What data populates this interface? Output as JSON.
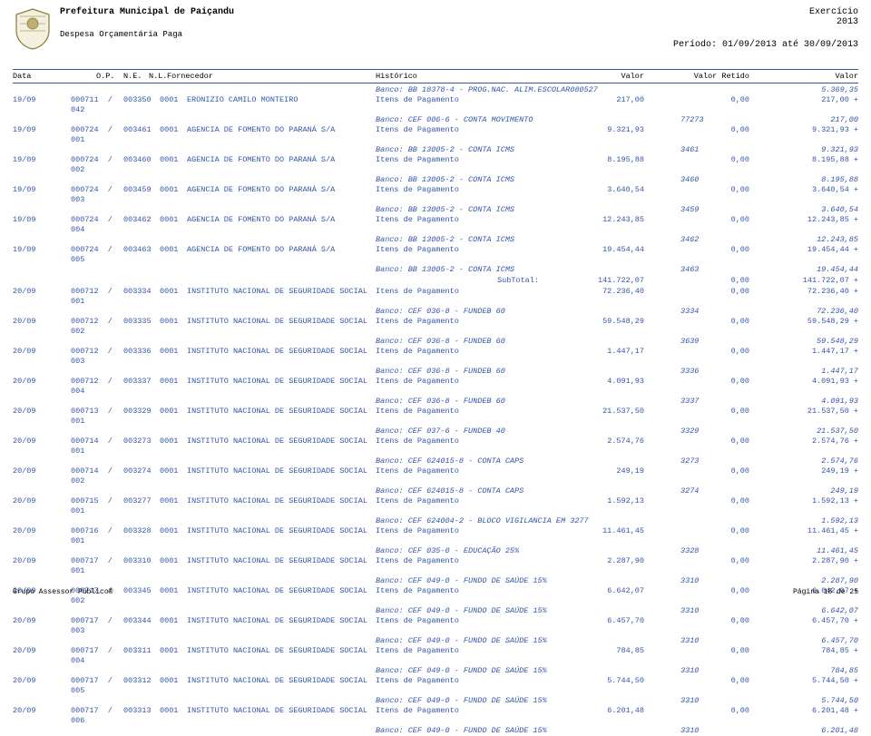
{
  "header": {
    "title": "Prefeitura Municipal de Paiçandu",
    "subtitle": "Despesa Orçamentária Paga",
    "exercicio_label": "Exercício",
    "exercicio_year": "2013",
    "periodo": "Período: 01/09/2013 até 30/09/2013"
  },
  "columns": {
    "data": "Data",
    "op": "O.P.",
    "ne": "N.E.",
    "nl": "N.L.",
    "fornecedor": "Fornecedor",
    "historico": "Histórico",
    "valor": "Valor",
    "valor_retido": "Valor Retido",
    "valor_total": "Valor"
  },
  "top_bank": {
    "text": "Banco: BB 18378-4 - PROG.NAC. ALIM.ESCOLAR080527",
    "v3": "5.369,35"
  },
  "rows": [
    {
      "data": "19/09",
      "op": "000711",
      "seq": "/ 042",
      "ne": "003350",
      "nl": "0001",
      "forn": "ERONIZIO CAMILO MONTEIRO",
      "hist": "Itens de Pagamento",
      "val": "217,00",
      "ret": "0,00",
      "tot": "217,00 +",
      "bank": "Banco: CEF 006-6 - CONTA MOVIMENTO",
      "b2": "77273",
      "b3": "217,00"
    },
    {
      "data": "19/09",
      "op": "000724",
      "seq": "/ 001",
      "ne": "003461",
      "nl": "0001",
      "forn": "AGENCIA DE FOMENTO DO PARANÁ S/A",
      "hist": "Itens de Pagamento",
      "val": "9.321,93",
      "ret": "0,00",
      "tot": "9.321,93 +",
      "bank": "Banco: BB 13005-2 - CONTA ICMS",
      "b2": "3461",
      "b3": "9.321,93"
    },
    {
      "data": "19/09",
      "op": "000724",
      "seq": "/ 002",
      "ne": "003460",
      "nl": "0001",
      "forn": "AGENCIA DE FOMENTO DO PARANÁ S/A",
      "hist": "Itens de Pagamento",
      "val": "8.195,88",
      "ret": "0,00",
      "tot": "8.195,88 +",
      "bank": "Banco: BB 13005-2 - CONTA ICMS",
      "b2": "3460",
      "b3": "8.195,88"
    },
    {
      "data": "19/09",
      "op": "000724",
      "seq": "/ 003",
      "ne": "003459",
      "nl": "0001",
      "forn": "AGENCIA DE FOMENTO DO PARANÁ S/A",
      "hist": "Itens de Pagamento",
      "val": "3.640,54",
      "ret": "0,00",
      "tot": "3.640,54 +",
      "bank": "Banco: BB 13005-2 - CONTA ICMS",
      "b2": "3459",
      "b3": "3.640,54"
    },
    {
      "data": "19/09",
      "op": "000724",
      "seq": "/ 004",
      "ne": "003462",
      "nl": "0001",
      "forn": "AGENCIA DE FOMENTO DO PARANÁ S/A",
      "hist": "Itens de Pagamento",
      "val": "12.243,85",
      "ret": "0,00",
      "tot": "12.243,85 +",
      "bank": "Banco: BB 13005-2 - CONTA ICMS",
      "b2": "3462",
      "b3": "12.243,85"
    },
    {
      "data": "19/09",
      "op": "000724",
      "seq": "/ 005",
      "ne": "003463",
      "nl": "0001",
      "forn": "AGENCIA DE FOMENTO DO PARANÁ S/A",
      "hist": "Itens de Pagamento",
      "val": "19.454,44",
      "ret": "0,00",
      "tot": "19.454,44 +",
      "bank": "Banco: BB 13005-2 - CONTA ICMS",
      "b2": "3463",
      "b3": "19.454,44"
    }
  ],
  "subtotal": {
    "label": "SubTotal:",
    "val": "141.722,07",
    "ret": "0,00",
    "tot": "141.722,07 +"
  },
  "rows2": [
    {
      "data": "20/09",
      "op": "000712",
      "seq": "/ 001",
      "ne": "003334",
      "nl": "0001",
      "forn": "INSTITUTO NACIONAL DE SEGURIDADE SOCIAL",
      "hist": "Itens de Pagamento",
      "val": "72.236,40",
      "ret": "0,00",
      "tot": "72.236,40 +",
      "bank": "Banco: CEF 036-8 - FUNDEB 60",
      "b2": "3334",
      "b3": "72.236,40"
    },
    {
      "data": "20/09",
      "op": "000712",
      "seq": "/ 002",
      "ne": "003335",
      "nl": "0001",
      "forn": "INSTITUTO NACIONAL DE SEGURIDADE SOCIAL",
      "hist": "Itens de Pagamento",
      "val": "59.548,29",
      "ret": "0,00",
      "tot": "59.548,29 +",
      "bank": "Banco: CEF 036-8 - FUNDEB 60",
      "b2": "3639",
      "b3": "59.548,29"
    },
    {
      "data": "20/09",
      "op": "000712",
      "seq": "/ 003",
      "ne": "003336",
      "nl": "0001",
      "forn": "INSTITUTO NACIONAL DE SEGURIDADE SOCIAL",
      "hist": "Itens de Pagamento",
      "val": "1.447,17",
      "ret": "0,00",
      "tot": "1.447,17 +",
      "bank": "Banco: CEF 036-8 - FUNDEB 60",
      "b2": "3336",
      "b3": "1.447,17"
    },
    {
      "data": "20/09",
      "op": "000712",
      "seq": "/ 004",
      "ne": "003337",
      "nl": "0001",
      "forn": "INSTITUTO NACIONAL DE SEGURIDADE SOCIAL",
      "hist": "Itens de Pagamento",
      "val": "4.091,93",
      "ret": "0,00",
      "tot": "4.091,93 +",
      "bank": "Banco: CEF 036-8 - FUNDEB 60",
      "b2": "3337",
      "b3": "4.091,93"
    },
    {
      "data": "20/09",
      "op": "000713",
      "seq": "/ 001",
      "ne": "003329",
      "nl": "0001",
      "forn": "INSTITUTO NACIONAL DE SEGURIDADE SOCIAL",
      "hist": "Itens de Pagamento",
      "val": "21.537,50",
      "ret": "0,00",
      "tot": "21.537,50 +",
      "bank": "Banco: CEF 037-6 - FUNDEB 40",
      "b2": "3329",
      "b3": "21.537,50"
    },
    {
      "data": "20/09",
      "op": "000714",
      "seq": "/ 001",
      "ne": "003273",
      "nl": "0001",
      "forn": "INSTITUTO NACIONAL DE SEGURIDADE SOCIAL",
      "hist": "Itens de Pagamento",
      "val": "2.574,76",
      "ret": "0,00",
      "tot": "2.574,76 +",
      "bank": "Banco: CEF 624015-8 - CONTA CAPS",
      "b2": "3273",
      "b3": "2.574,76"
    },
    {
      "data": "20/09",
      "op": "000714",
      "seq": "/ 002",
      "ne": "003274",
      "nl": "0001",
      "forn": "INSTITUTO NACIONAL DE SEGURIDADE SOCIAL",
      "hist": "Itens de Pagamento",
      "val": "249,19",
      "ret": "0,00",
      "tot": "249,19 +",
      "bank": "Banco: CEF 624015-8 - CONTA CAPS",
      "b2": "3274",
      "b3": "249,19"
    },
    {
      "data": "20/09",
      "op": "000715",
      "seq": "/ 001",
      "ne": "003277",
      "nl": "0001",
      "forn": "INSTITUTO NACIONAL DE SEGURIDADE SOCIAL",
      "hist": "Itens de Pagamento",
      "val": "1.592,13",
      "ret": "0,00",
      "tot": "1.592,13 +",
      "bank": "Banco: CEF 624004-2 - BLOCO VIGILANCIA EM 3277",
      "b2": "",
      "b3": "1.592,13"
    },
    {
      "data": "20/09",
      "op": "000716",
      "seq": "/ 001",
      "ne": "003328",
      "nl": "0001",
      "forn": "INSTITUTO NACIONAL DE SEGURIDADE SOCIAL",
      "hist": "Itens de Pagamento",
      "val": "11.461,45",
      "ret": "0,00",
      "tot": "11.461,45 +",
      "bank": "Banco: CEF 035-0 - EDUCAÇÃO 25%",
      "b2": "3328",
      "b3": "11.461,45"
    },
    {
      "data": "20/09",
      "op": "000717",
      "seq": "/ 001",
      "ne": "003310",
      "nl": "0001",
      "forn": "INSTITUTO NACIONAL DE SEGURIDADE SOCIAL",
      "hist": "Itens de Pagamento",
      "val": "2.287,90",
      "ret": "0,00",
      "tot": "2.287,90 +",
      "bank": "Banco: CEF 049-0 - FUNDO DE SAÚDE 15%",
      "b2": "3310",
      "b3": "2.287,90"
    },
    {
      "data": "20/09",
      "op": "000717",
      "seq": "/ 002",
      "ne": "003345",
      "nl": "0001",
      "forn": "INSTITUTO NACIONAL DE SEGURIDADE SOCIAL",
      "hist": "Itens de Pagamento",
      "val": "6.642,07",
      "ret": "0,00",
      "tot": "6.642,07 +",
      "bank": "Banco: CEF 049-0 - FUNDO DE SAÚDE 15%",
      "b2": "3310",
      "b3": "6.642,07"
    },
    {
      "data": "20/09",
      "op": "000717",
      "seq": "/ 003",
      "ne": "003344",
      "nl": "0001",
      "forn": "INSTITUTO NACIONAL DE SEGURIDADE SOCIAL",
      "hist": "Itens de Pagamento",
      "val": "6.457,70",
      "ret": "0,00",
      "tot": "6.457,70 +",
      "bank": "Banco: CEF 049-0 - FUNDO DE SAÚDE 15%",
      "b2": "3310",
      "b3": "6.457,70"
    },
    {
      "data": "20/09",
      "op": "000717",
      "seq": "/ 004",
      "ne": "003311",
      "nl": "0001",
      "forn": "INSTITUTO NACIONAL DE SEGURIDADE SOCIAL",
      "hist": "Itens de Pagamento",
      "val": "784,85",
      "ret": "0,00",
      "tot": "784,85 +",
      "bank": "Banco: CEF 049-0 - FUNDO DE SAÚDE 15%",
      "b2": "3310",
      "b3": "784,85"
    },
    {
      "data": "20/09",
      "op": "000717",
      "seq": "/ 005",
      "ne": "003312",
      "nl": "0001",
      "forn": "INSTITUTO NACIONAL DE SEGURIDADE SOCIAL",
      "hist": "Itens de Pagamento",
      "val": "5.744,50",
      "ret": "0,00",
      "tot": "5.744,50 +",
      "bank": "Banco: CEF 049-0 - FUNDO DE SAÚDE 15%",
      "b2": "3310",
      "b3": "5.744,50"
    },
    {
      "data": "20/09",
      "op": "000717",
      "seq": "/ 006",
      "ne": "003313",
      "nl": "0001",
      "forn": "INSTITUTO NACIONAL DE SEGURIDADE SOCIAL",
      "hist": "Itens de Pagamento",
      "val": "6.201,48",
      "ret": "0,00",
      "tot": "6.201,48 +",
      "bank": "Banco: CEF 049-0 - FUNDO DE SAÚDE 15%",
      "b2": "3310",
      "b3": "6.201,48"
    }
  ],
  "footer": {
    "left": "Grupo Assessor Público®",
    "right": "Página 18 de 25"
  },
  "style": {
    "rule_color": "#3355aa",
    "text_color": "#3355aa"
  }
}
